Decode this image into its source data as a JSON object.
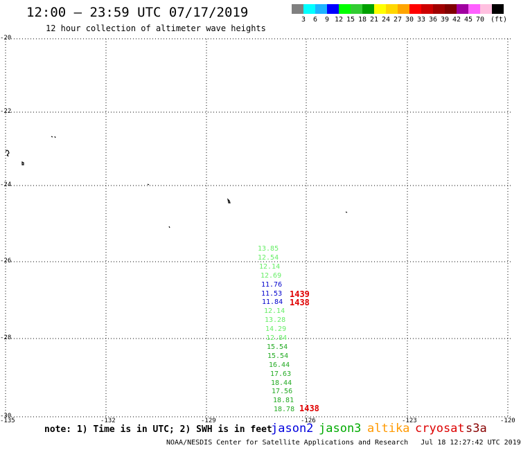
{
  "header": {
    "title": "12:00 – 23:59 UTC 07/17/2019",
    "subtitle": "12 hour collection of altimeter wave heights"
  },
  "colorbar": {
    "unit": "(ft)",
    "colors": [
      "#808080",
      "#00ffff",
      "#1eb4ff",
      "#0000ff",
      "#00ff00",
      "#32cd32",
      "#00a000",
      "#ffff00",
      "#ffd700",
      "#ffa500",
      "#ff0000",
      "#cd0000",
      "#a00000",
      "#800000",
      "#a000a0",
      "#ff60ff",
      "#ffc0e0",
      "#000000"
    ],
    "labels": [
      "3",
      "6",
      "9",
      "12",
      "15",
      "18",
      "21",
      "24",
      "27",
      "30",
      "33",
      "36",
      "39",
      "42",
      "45",
      "70"
    ]
  },
  "axes": {
    "y_ticks": [
      "-20",
      "-22",
      "-24",
      "-26",
      "-28",
      "-30"
    ],
    "x_ticks": [
      "-135",
      "-132",
      "-129",
      "-126",
      "-123",
      "-120"
    ]
  },
  "wave_heights": [
    {
      "value": "13.85",
      "color": "#66ee66"
    },
    {
      "value": "12.54",
      "color": "#66ee66"
    },
    {
      "value": "12.14",
      "color": "#66ee66"
    },
    {
      "value": "12.69",
      "color": "#66ee66"
    },
    {
      "value": "11.76",
      "color": "#0000cc"
    },
    {
      "value": "11.53",
      "color": "#0000cc"
    },
    {
      "value": "11.84",
      "color": "#0000cc"
    },
    {
      "value": "12.14",
      "color": "#66ee66"
    },
    {
      "value": "13.28",
      "color": "#66ee66"
    },
    {
      "value": "14.29",
      "color": "#66ee66"
    },
    {
      "value": "12.84",
      "color": "#66ee66"
    },
    {
      "value": "15.54",
      "color": "#22aa22"
    },
    {
      "value": "15.54",
      "color": "#22aa22"
    },
    {
      "value": "16.44",
      "color": "#22aa22"
    },
    {
      "value": "17.63",
      "color": "#22aa22"
    },
    {
      "value": "18.44",
      "color": "#22aa22"
    },
    {
      "value": "17.56",
      "color": "#22aa22"
    },
    {
      "value": "18.81",
      "color": "#22aa22"
    },
    {
      "value": "18.78",
      "color": "#22aa22"
    }
  ],
  "pass_times": [
    "1439",
    "1438",
    "1438"
  ],
  "footer": {
    "note": "note: 1) Time is in UTC; 2) SWH is in feet",
    "legend": [
      {
        "name": "jason2",
        "color": "#0000dd"
      },
      {
        "name": "jason3",
        "color": "#00aa00"
      },
      {
        "name": "altika",
        "color": "#ff9900"
      },
      {
        "name": "cryosat",
        "color": "#dd0000"
      },
      {
        "name": "s3a",
        "color": "#880000"
      }
    ],
    "credit": "NOAA/NESDIS Center for Satellite Applications and Research   Jul 18 12:27:42 UTC 2019"
  }
}
